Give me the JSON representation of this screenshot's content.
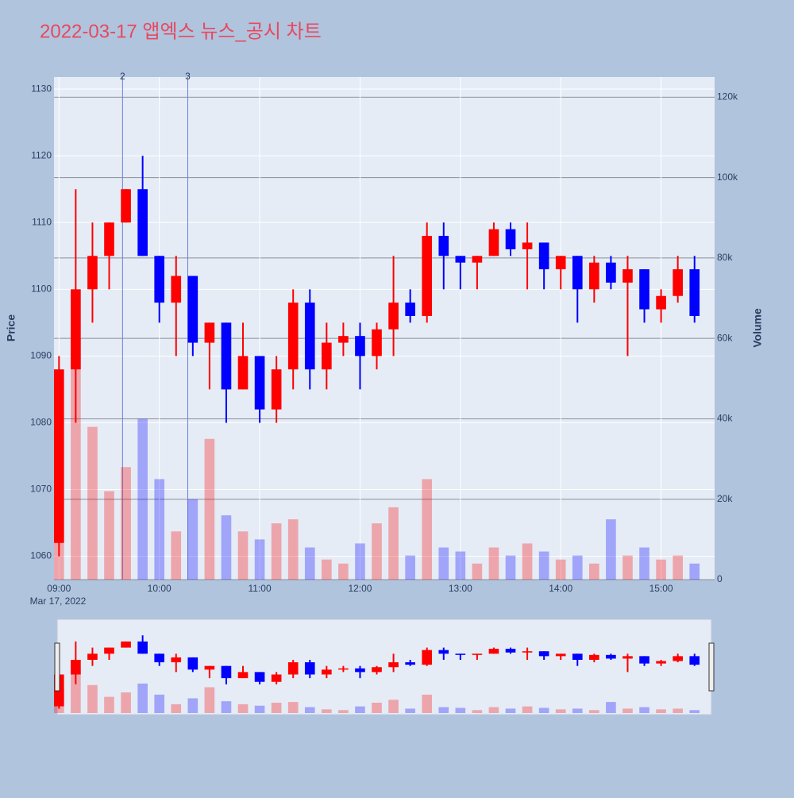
{
  "chart_data": {
    "type": "candlestick",
    "title": "2022-03-17 앱엑스 뉴스_공시 차트",
    "x": [
      "09:00",
      "09:10",
      "09:20",
      "09:30",
      "09:40",
      "09:50",
      "10:00",
      "10:10",
      "10:20",
      "10:30",
      "10:40",
      "10:50",
      "11:00",
      "11:10",
      "11:20",
      "11:30",
      "11:40",
      "11:50",
      "12:00",
      "12:10",
      "12:20",
      "12:30",
      "12:40",
      "12:50",
      "13:00",
      "13:10",
      "13:20",
      "13:30",
      "13:40",
      "13:50",
      "14:00",
      "14:10",
      "14:20",
      "14:30",
      "14:40",
      "14:50",
      "15:00",
      "15:10",
      "15:20"
    ],
    "open": [
      1062,
      1088,
      1100,
      1105,
      1110,
      1115,
      1105,
      1098,
      1102,
      1092,
      1095,
      1085,
      1090,
      1082,
      1088,
      1098,
      1088,
      1092,
      1093,
      1090,
      1094,
      1098,
      1096,
      1108,
      1105,
      1104,
      1105,
      1109,
      1106,
      1107,
      1103,
      1105,
      1100,
      1104,
      1101,
      1103,
      1097,
      1099,
      1103
    ],
    "high": [
      1090,
      1115,
      1110,
      1110,
      1115,
      1120,
      1105,
      1105,
      1102,
      1095,
      1095,
      1095,
      1090,
      1090,
      1100,
      1100,
      1095,
      1095,
      1095,
      1095,
      1105,
      1100,
      1110,
      1110,
      1105,
      1105,
      1110,
      1110,
      1110,
      1107,
      1105,
      1105,
      1105,
      1105,
      1105,
      1103,
      1100,
      1105,
      1105
    ],
    "low": [
      1060,
      1080,
      1095,
      1100,
      1110,
      1105,
      1095,
      1090,
      1090,
      1085,
      1080,
      1085,
      1080,
      1080,
      1085,
      1085,
      1085,
      1090,
      1085,
      1088,
      1090,
      1095,
      1095,
      1100,
      1100,
      1100,
      1105,
      1105,
      1100,
      1100,
      1100,
      1095,
      1098,
      1100,
      1090,
      1095,
      1095,
      1098,
      1095
    ],
    "close": [
      1088,
      1100,
      1105,
      1110,
      1115,
      1105,
      1098,
      1102,
      1092,
      1095,
      1085,
      1090,
      1082,
      1088,
      1098,
      1088,
      1092,
      1093,
      1090,
      1094,
      1098,
      1096,
      1108,
      1105,
      1104,
      1105,
      1109,
      1106,
      1107,
      1103,
      1105,
      1100,
      1104,
      1101,
      1103,
      1097,
      1099,
      1103,
      1096
    ],
    "volume": [
      35000,
      60000,
      38000,
      22000,
      28000,
      40000,
      25000,
      12000,
      20000,
      35000,
      16000,
      12000,
      10000,
      14000,
      15000,
      8000,
      5000,
      4000,
      9000,
      14000,
      18000,
      6000,
      25000,
      8000,
      7000,
      4000,
      8000,
      6000,
      9000,
      7000,
      5000,
      6000,
      4000,
      15000,
      6000,
      8000,
      5000,
      6000,
      4000
    ],
    "increasing_color": "#ff0000",
    "decreasing_color": "#0000ff",
    "xlim": [
      "08:57",
      "15:32"
    ],
    "xticks": [
      "09:00",
      "10:00",
      "11:00",
      "12:00",
      "13:00",
      "14:00",
      "15:00"
    ],
    "x_date_label": "Mar 17, 2022",
    "ylabel": "Price",
    "ylim": [
      1056.5,
      1131.8
    ],
    "yticks": [
      1060,
      1070,
      1080,
      1090,
      1100,
      1110,
      1120,
      1130
    ],
    "y2label": "Volume",
    "y2lim": [
      0,
      125000
    ],
    "y2ticks": [
      0,
      {
        "value": 20000,
        "label": "20k"
      },
      {
        "value": 40000,
        "label": "40k"
      },
      {
        "value": 60000,
        "label": "60k"
      },
      {
        "value": 80000,
        "label": "80k"
      },
      {
        "value": 100000,
        "label": "100k"
      },
      {
        "value": 120000,
        "label": "120k"
      }
    ],
    "annotations": [
      {
        "x": "09:38",
        "text": "2"
      },
      {
        "x": "10:17",
        "text": "3"
      }
    ],
    "range_slider": true
  }
}
